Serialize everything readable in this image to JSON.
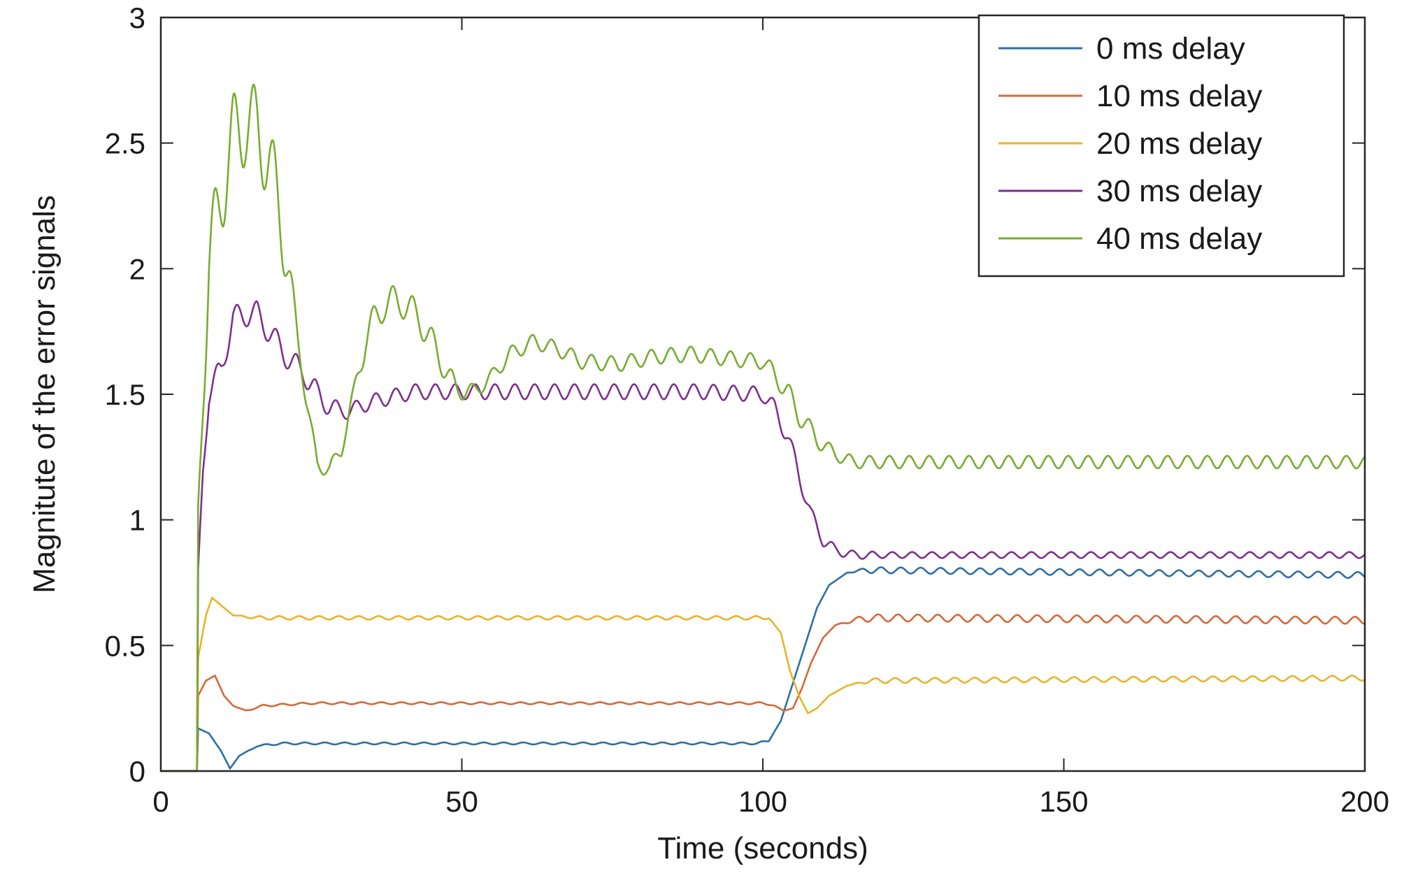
{
  "chart_data": {
    "type": "line",
    "title": "",
    "xlabel": "Time (seconds)",
    "ylabel": "Magnitute of the error signals",
    "xlim": [
      0,
      200
    ],
    "ylim": [
      0,
      3
    ],
    "xticks": [
      0,
      50,
      100,
      150,
      200
    ],
    "xtick_labels": [
      "0",
      "50",
      "100",
      "150",
      "200"
    ],
    "yticks": [
      0,
      0.5,
      1,
      1.5,
      2,
      2.5,
      3
    ],
    "ytick_labels": [
      "0",
      "0.5",
      "1",
      "1.5",
      "2",
      "2.5",
      "3"
    ],
    "grid": false,
    "legend_position": "top-right",
    "ripple_period": 3.3,
    "series": [
      {
        "name": "0 ms delay",
        "color": "#2e6fa3",
        "ripple": [
          [
            0,
            0
          ],
          [
            13,
            0
          ],
          [
            18,
            0.004
          ],
          [
            100,
            0.004
          ],
          [
            102,
            0
          ],
          [
            114,
            0
          ],
          [
            118,
            0.012
          ],
          [
            200,
            0.012
          ]
        ],
        "points": [
          [
            0,
            0
          ],
          [
            6,
            0
          ],
          [
            6.2,
            0.17
          ],
          [
            8,
            0.15
          ],
          [
            10,
            0.08
          ],
          [
            11.5,
            0.01
          ],
          [
            13,
            0.06
          ],
          [
            16,
            0.1
          ],
          [
            20,
            0.11
          ],
          [
            40,
            0.11
          ],
          [
            60,
            0.11
          ],
          [
            80,
            0.11
          ],
          [
            99,
            0.11
          ],
          [
            101,
            0.12
          ],
          [
            103,
            0.2
          ],
          [
            105,
            0.35
          ],
          [
            107,
            0.5
          ],
          [
            109,
            0.65
          ],
          [
            111,
            0.74
          ],
          [
            114,
            0.79
          ],
          [
            117,
            0.8
          ],
          [
            200,
            0.78
          ]
        ]
      },
      {
        "name": "10 ms delay",
        "color": "#d4693a",
        "ripple": [
          [
            0,
            0
          ],
          [
            12,
            0
          ],
          [
            16,
            0.004
          ],
          [
            100,
            0.004
          ],
          [
            102,
            0
          ],
          [
            112,
            0
          ],
          [
            117,
            0.014
          ],
          [
            200,
            0.014
          ]
        ],
        "points": [
          [
            0,
            0
          ],
          [
            6,
            0
          ],
          [
            6.2,
            0.3
          ],
          [
            7.5,
            0.36
          ],
          [
            9,
            0.38
          ],
          [
            10.5,
            0.3
          ],
          [
            12,
            0.26
          ],
          [
            14,
            0.24
          ],
          [
            17,
            0.26
          ],
          [
            25,
            0.27
          ],
          [
            60,
            0.27
          ],
          [
            100,
            0.27
          ],
          [
            102,
            0.26
          ],
          [
            103.5,
            0.24
          ],
          [
            105,
            0.25
          ],
          [
            106.5,
            0.33
          ],
          [
            108,
            0.43
          ],
          [
            110,
            0.53
          ],
          [
            112,
            0.58
          ],
          [
            115,
            0.6
          ],
          [
            118,
            0.61
          ],
          [
            200,
            0.6
          ]
        ]
      },
      {
        "name": "20 ms delay",
        "color": "#e8b42a",
        "ripple": [
          [
            0,
            0
          ],
          [
            12,
            0
          ],
          [
            16,
            0.007
          ],
          [
            100,
            0.007
          ],
          [
            102,
            0
          ],
          [
            114,
            0
          ],
          [
            119,
            0.01
          ],
          [
            200,
            0.01
          ]
        ],
        "points": [
          [
            0,
            0
          ],
          [
            6,
            0
          ],
          [
            6.2,
            0.45
          ],
          [
            7.5,
            0.62
          ],
          [
            8.5,
            0.69
          ],
          [
            10,
            0.66
          ],
          [
            12,
            0.62
          ],
          [
            16,
            0.61
          ],
          [
            40,
            0.61
          ],
          [
            80,
            0.61
          ],
          [
            101,
            0.61
          ],
          [
            103,
            0.55
          ],
          [
            104.5,
            0.4
          ],
          [
            106,
            0.3
          ],
          [
            107.5,
            0.23
          ],
          [
            109,
            0.25
          ],
          [
            111,
            0.3
          ],
          [
            114,
            0.34
          ],
          [
            118,
            0.36
          ],
          [
            200,
            0.37
          ]
        ]
      },
      {
        "name": "30 ms delay",
        "color": "#7e2f8e",
        "ripple": [
          [
            0,
            0
          ],
          [
            6,
            0
          ],
          [
            8,
            0.05
          ],
          [
            25,
            0.05
          ],
          [
            30,
            0.03
          ],
          [
            100,
            0.03
          ],
          [
            104,
            0.04
          ],
          [
            112,
            0.02
          ],
          [
            120,
            0.012
          ],
          [
            200,
            0.012
          ]
        ],
        "points": [
          [
            0,
            0
          ],
          [
            6,
            0
          ],
          [
            6.2,
            0.8
          ],
          [
            7,
            1.2
          ],
          [
            8,
            1.5
          ],
          [
            10,
            1.6
          ],
          [
            12,
            1.8
          ],
          [
            14,
            1.82
          ],
          [
            16,
            1.82
          ],
          [
            18,
            1.75
          ],
          [
            20,
            1.68
          ],
          [
            22,
            1.62
          ],
          [
            24,
            1.58
          ],
          [
            26,
            1.5
          ],
          [
            28,
            1.45
          ],
          [
            31,
            1.43
          ],
          [
            35,
            1.47
          ],
          [
            42,
            1.51
          ],
          [
            50,
            1.51
          ],
          [
            70,
            1.51
          ],
          [
            90,
            1.51
          ],
          [
            100,
            1.5
          ],
          [
            102,
            1.44
          ],
          [
            104,
            1.34
          ],
          [
            106,
            1.18
          ],
          [
            108,
            1.02
          ],
          [
            110,
            0.92
          ],
          [
            112,
            0.88
          ],
          [
            115,
            0.86
          ],
          [
            120,
            0.86
          ],
          [
            200,
            0.86
          ]
        ]
      },
      {
        "name": "40 ms delay",
        "color": "#77ac30",
        "ripple": [
          [
            0,
            0
          ],
          [
            6,
            0
          ],
          [
            8,
            0.18
          ],
          [
            20,
            0.16
          ],
          [
            23,
            0.03
          ],
          [
            32,
            0.03
          ],
          [
            34,
            0.07
          ],
          [
            45,
            0.06
          ],
          [
            52,
            0.03
          ],
          [
            100,
            0.03
          ],
          [
            104,
            0.05
          ],
          [
            112,
            0.025
          ],
          [
            200,
            0.025
          ]
        ],
        "points": [
          [
            0,
            0
          ],
          [
            6,
            0
          ],
          [
            6.2,
            1.05
          ],
          [
            7,
            1.5
          ],
          [
            8,
            2.0
          ],
          [
            10,
            2.3
          ],
          [
            12,
            2.52
          ],
          [
            14,
            2.58
          ],
          [
            16,
            2.56
          ],
          [
            18,
            2.42
          ],
          [
            20,
            2.2
          ],
          [
            22,
            1.85
          ],
          [
            24,
            1.5
          ],
          [
            26,
            1.22
          ],
          [
            28,
            1.2
          ],
          [
            30,
            1.28
          ],
          [
            32,
            1.5
          ],
          [
            34,
            1.72
          ],
          [
            37,
            1.86
          ],
          [
            40,
            1.87
          ],
          [
            43,
            1.8
          ],
          [
            46,
            1.66
          ],
          [
            49,
            1.52
          ],
          [
            52,
            1.51
          ],
          [
            55,
            1.57
          ],
          [
            58,
            1.66
          ],
          [
            62,
            1.71
          ],
          [
            66,
            1.68
          ],
          [
            70,
            1.63
          ],
          [
            76,
            1.62
          ],
          [
            82,
            1.65
          ],
          [
            88,
            1.66
          ],
          [
            95,
            1.64
          ],
          [
            100,
            1.63
          ],
          [
            103,
            1.55
          ],
          [
            106,
            1.42
          ],
          [
            109,
            1.32
          ],
          [
            112,
            1.26
          ],
          [
            115,
            1.23
          ],
          [
            120,
            1.23
          ],
          [
            200,
            1.23
          ]
        ]
      }
    ]
  }
}
